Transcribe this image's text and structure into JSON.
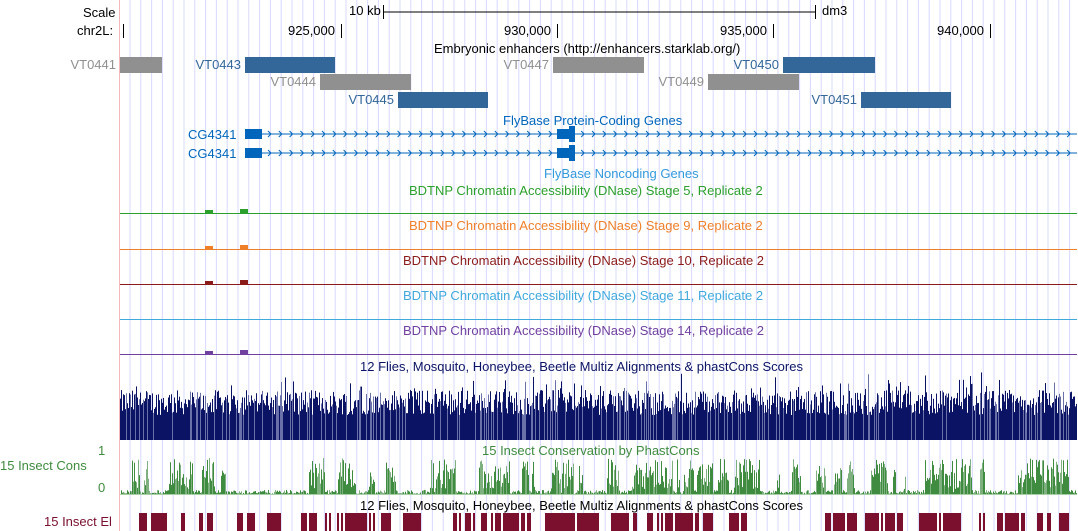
{
  "ruler": {
    "scale_label": "Scale",
    "chrom_label": "chr2L:",
    "scale_bar_label": "10 kb",
    "assembly": "dm3",
    "ticks": [
      "925,000",
      "930,000",
      "935,000",
      "940,000"
    ]
  },
  "tracks": {
    "enhancers": {
      "title": "Embryonic enhancers (http://enhancers.starklab.org/)",
      "items": [
        {
          "name": "VT0441",
          "color": "#909090"
        },
        {
          "name": "VT0443",
          "color": "#336699"
        },
        {
          "name": "VT0444",
          "color": "#909090"
        },
        {
          "name": "VT0445",
          "color": "#336699"
        },
        {
          "name": "VT0447",
          "color": "#909090"
        },
        {
          "name": "VT0449",
          "color": "#909090"
        },
        {
          "name": "VT0450",
          "color": "#336699"
        },
        {
          "name": "VT0451",
          "color": "#336699"
        }
      ]
    },
    "protein_genes": {
      "title": "FlyBase Protein-Coding Genes",
      "genes": [
        "CG4341",
        "CG4341"
      ],
      "color": "#0066bb"
    },
    "noncoding": {
      "title": "FlyBase Noncoding Genes"
    },
    "dnase": [
      {
        "title": "BDTNP Chromatin Accessibility (DNase) Stage 5, Replicate 2",
        "color": "#2ca02c"
      },
      {
        "title": "BDTNP Chromatin Accessibility (DNase) Stage 9, Replicate 2",
        "color": "#f07f2a"
      },
      {
        "title": "BDTNP Chromatin Accessibility (DNase) Stage 10, Replicate 2",
        "color": "#8b1a1a"
      },
      {
        "title": "BDTNP Chromatin Accessibility (DNase) Stage 11, Replicate 2",
        "color": "#3fa9dc"
      },
      {
        "title": "BDTNP Chromatin Accessibility (DNase) Stage 14, Replicate 2",
        "color": "#7040a0"
      }
    ],
    "multiz": {
      "title": "12 Flies, Mosquito, Honeybee, Beetle Multiz Alignments & phastCons Scores",
      "color": "#0b1464"
    },
    "cons": {
      "title": "15 Insect Conservation by PhastCons",
      "side_label": "15 Insect Cons",
      "ymax": "1",
      "ymin": "0",
      "color": "#3f8b3f"
    },
    "elements": {
      "title": "12 Flies, Mosquito, Honeybee, Beetle Multiz Alignments & phastCons Scores",
      "side_label": "15 Insect El",
      "color": "#7a0f2e"
    }
  }
}
